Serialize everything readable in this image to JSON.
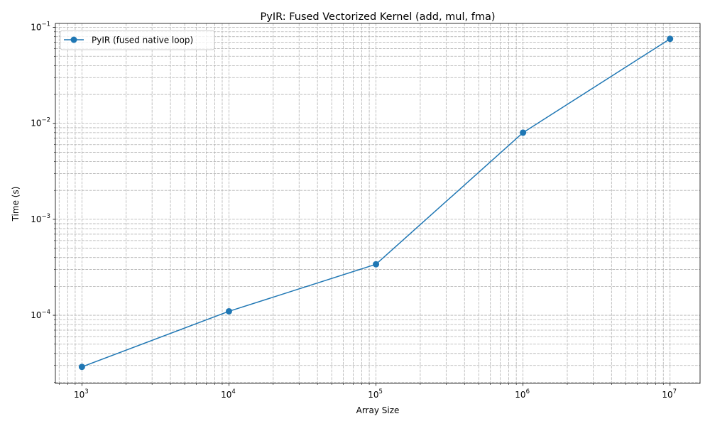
{
  "chart_data": {
    "type": "line",
    "title": "PyIR: Fused Vectorized Kernel (add, mul, fma)",
    "xlabel": "Array Size",
    "ylabel": "Time (s)",
    "xscale": "log",
    "yscale": "log",
    "xlim": [
      660,
      16000000
    ],
    "ylim": [
      1.95e-05,
      0.11
    ],
    "grid": "both (major and minor), dashed",
    "legend_position": "top-left",
    "x_ticks": [
      {
        "base": "10",
        "exp": "3",
        "value": 1000
      },
      {
        "base": "10",
        "exp": "4",
        "value": 10000
      },
      {
        "base": "10",
        "exp": "5",
        "value": 100000
      },
      {
        "base": "10",
        "exp": "6",
        "value": 1000000
      },
      {
        "base": "10",
        "exp": "7",
        "value": 10000000
      }
    ],
    "y_ticks": [
      {
        "base": "10",
        "exp": "−4",
        "value": 0.0001
      },
      {
        "base": "10",
        "exp": "−3",
        "value": 0.001
      },
      {
        "base": "10",
        "exp": "−2",
        "value": 0.01
      },
      {
        "base": "10",
        "exp": "−1",
        "value": 0.1
      }
    ],
    "series": [
      {
        "name": "PyIR (fused native loop)",
        "color": "#1f77b4",
        "marker": "circle",
        "x": [
          1000,
          10000,
          100000,
          1000000,
          10000000
        ],
        "y": [
          2.9e-05,
          0.00011,
          0.00034,
          0.008,
          0.076
        ]
      }
    ]
  }
}
